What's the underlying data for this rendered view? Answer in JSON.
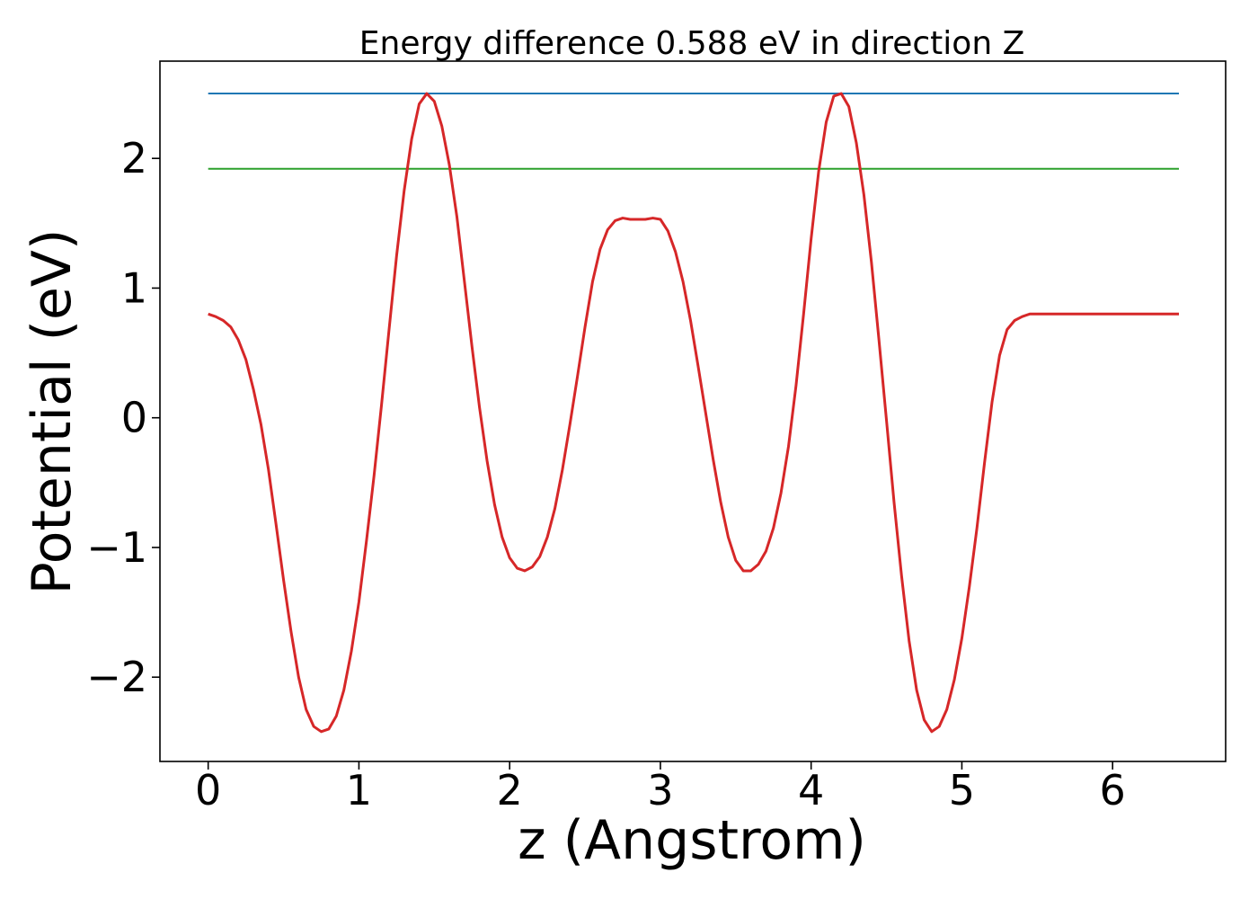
{
  "chart_data": {
    "type": "line",
    "title": "Energy difference 0.588 eV in direction Z",
    "xlabel": "z (Angstrom)",
    "ylabel": "Potential (eV)",
    "xlim": [
      -0.32,
      6.75
    ],
    "ylim": [
      -2.65,
      2.75
    ],
    "xticks": [
      0,
      1,
      2,
      3,
      4,
      5,
      6
    ],
    "xtick_labels": [
      "0",
      "1",
      "2",
      "3",
      "4",
      "5",
      "6"
    ],
    "yticks": [
      -2,
      -1,
      0,
      1,
      2
    ],
    "ytick_labels": [
      "−2",
      "−1",
      "0",
      "1",
      "2"
    ],
    "grid": false,
    "series": [
      {
        "color": "#1f77b4",
        "x": [
          0,
          6.44
        ],
        "y": [
          2.5,
          2.5
        ]
      },
      {
        "color": "#2ca02c",
        "x": [
          0,
          6.44
        ],
        "y": [
          1.92,
          1.92
        ]
      },
      {
        "color": "#d62728",
        "x": [
          0,
          0.05,
          0.1,
          0.15,
          0.2,
          0.25,
          0.3,
          0.35,
          0.4,
          0.45,
          0.5,
          0.55,
          0.6,
          0.65,
          0.7,
          0.75,
          0.8,
          0.85,
          0.9,
          0.95,
          1.0,
          1.05,
          1.1,
          1.15,
          1.2,
          1.25,
          1.3,
          1.35,
          1.4,
          1.45,
          1.5,
          1.55,
          1.6,
          1.65,
          1.7,
          1.75,
          1.8,
          1.85,
          1.9,
          1.95,
          2.0,
          2.05,
          2.1,
          2.15,
          2.2,
          2.25,
          2.3,
          2.35,
          2.4,
          2.45,
          2.5,
          2.55,
          2.6,
          2.65,
          2.7,
          2.75,
          2.8,
          2.85,
          2.9,
          2.95,
          3.0,
          3.05,
          3.1,
          3.15,
          3.2,
          3.25,
          3.3,
          3.35,
          3.4,
          3.45,
          3.5,
          3.55,
          3.6,
          3.65,
          3.7,
          3.75,
          3.8,
          3.85,
          3.9,
          3.95,
          4.0,
          4.05,
          4.1,
          4.15,
          4.2,
          4.25,
          4.3,
          4.35,
          4.4,
          4.45,
          4.5,
          4.55,
          4.6,
          4.65,
          4.7,
          4.75,
          4.8,
          4.85,
          4.9,
          4.95,
          5.0,
          5.05,
          5.1,
          5.15,
          5.2,
          5.25,
          5.3,
          5.35,
          5.4,
          5.45,
          5.5,
          5.55,
          5.6,
          5.65,
          5.7,
          5.75,
          5.8,
          5.85,
          5.9,
          5.95,
          6.0,
          6.05,
          6.1,
          6.15,
          6.2,
          6.25,
          6.3,
          6.35,
          6.4,
          6.44
        ],
        "y": [
          0.8,
          0.78,
          0.75,
          0.7,
          0.6,
          0.45,
          0.22,
          -0.05,
          -0.4,
          -0.82,
          -1.25,
          -1.65,
          -2.0,
          -2.25,
          -2.38,
          -2.42,
          -2.4,
          -2.3,
          -2.1,
          -1.8,
          -1.42,
          -0.95,
          -0.45,
          0.1,
          0.68,
          1.25,
          1.75,
          2.15,
          2.42,
          2.5,
          2.44,
          2.25,
          1.95,
          1.55,
          1.05,
          0.55,
          0.08,
          -0.33,
          -0.67,
          -0.92,
          -1.08,
          -1.16,
          -1.18,
          -1.15,
          -1.07,
          -0.92,
          -0.7,
          -0.4,
          -0.05,
          0.32,
          0.7,
          1.05,
          1.3,
          1.45,
          1.52,
          1.54,
          1.53,
          1.53,
          1.53,
          1.54,
          1.53,
          1.44,
          1.28,
          1.05,
          0.75,
          0.4,
          0.04,
          -0.32,
          -0.65,
          -0.92,
          -1.1,
          -1.18,
          -1.18,
          -1.13,
          -1.03,
          -0.85,
          -0.58,
          -0.22,
          0.25,
          0.8,
          1.38,
          1.9,
          2.28,
          2.48,
          2.5,
          2.4,
          2.12,
          1.72,
          1.2,
          0.6,
          -0.02,
          -0.65,
          -1.22,
          -1.72,
          -2.1,
          -2.33,
          -2.42,
          -2.38,
          -2.25,
          -2.02,
          -1.7,
          -1.3,
          -0.85,
          -0.35,
          0.12,
          0.48,
          0.68,
          0.75,
          0.78,
          0.8,
          0.8,
          0.8,
          0.8,
          0.8,
          0.8,
          0.8,
          0.8,
          0.8,
          0.8,
          0.8,
          0.8,
          0.8,
          0.8,
          0.8,
          0.8,
          0.8,
          0.8,
          0.8,
          0.8,
          0.8
        ]
      }
    ]
  }
}
